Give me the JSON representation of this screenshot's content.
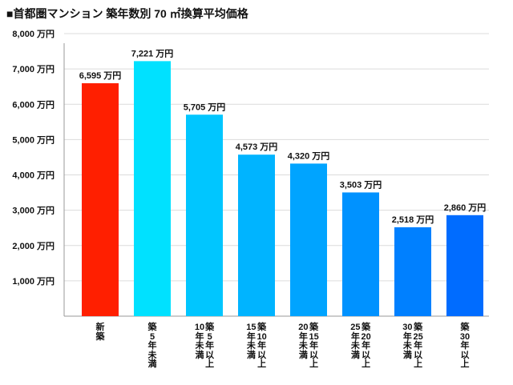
{
  "title": "■首都圏マンション 築年数別 70 ㎡換算平均価格",
  "chart_data": {
    "type": "bar",
    "unit": "万円",
    "categories": [
      "新築",
      "築5年未満",
      "築5年以上10年未満",
      "築10年以上15年未満",
      "築15年以上20年未満",
      "築20年以上25年未満",
      "築25年以上30年未満",
      "築30年以上"
    ],
    "category_lines": [
      [
        "新築"
      ],
      [
        "築5年未満"
      ],
      [
        "築5年以上",
        "10年未満"
      ],
      [
        "築10年以上",
        "15年未満"
      ],
      [
        "築15年以上",
        "20年未満"
      ],
      [
        "築20年以上",
        "25年未満"
      ],
      [
        "築25年以上",
        "30年未満"
      ],
      [
        "築30年以上"
      ]
    ],
    "values": [
      6595,
      7221,
      5705,
      4573,
      4320,
      3503,
      2518,
      2860
    ],
    "value_labels": [
      "6,595 万円",
      "7,221 万円",
      "5,705 万円",
      "4,573 万円",
      "4,320 万円",
      "3,503 万円",
      "2,518 万円",
      "2,860 万円"
    ],
    "colors": [
      "#ff1f00",
      "#00e1ff",
      "#00c6ff",
      "#00b4ff",
      "#00a4ff",
      "#0092ff",
      "#0080ff",
      "#006cff"
    ],
    "ylim": [
      0,
      8000
    ],
    "yticks": [
      1000,
      2000,
      3000,
      4000,
      5000,
      6000,
      7000,
      8000
    ],
    "ytick_labels": [
      "1,000 万円",
      "2,000 万円",
      "3,000 万円",
      "4,000 万円",
      "5,000 万円",
      "6,000 万円",
      "7,000 万円",
      "8,000 万円"
    ],
    "grid": true,
    "legend": false
  }
}
